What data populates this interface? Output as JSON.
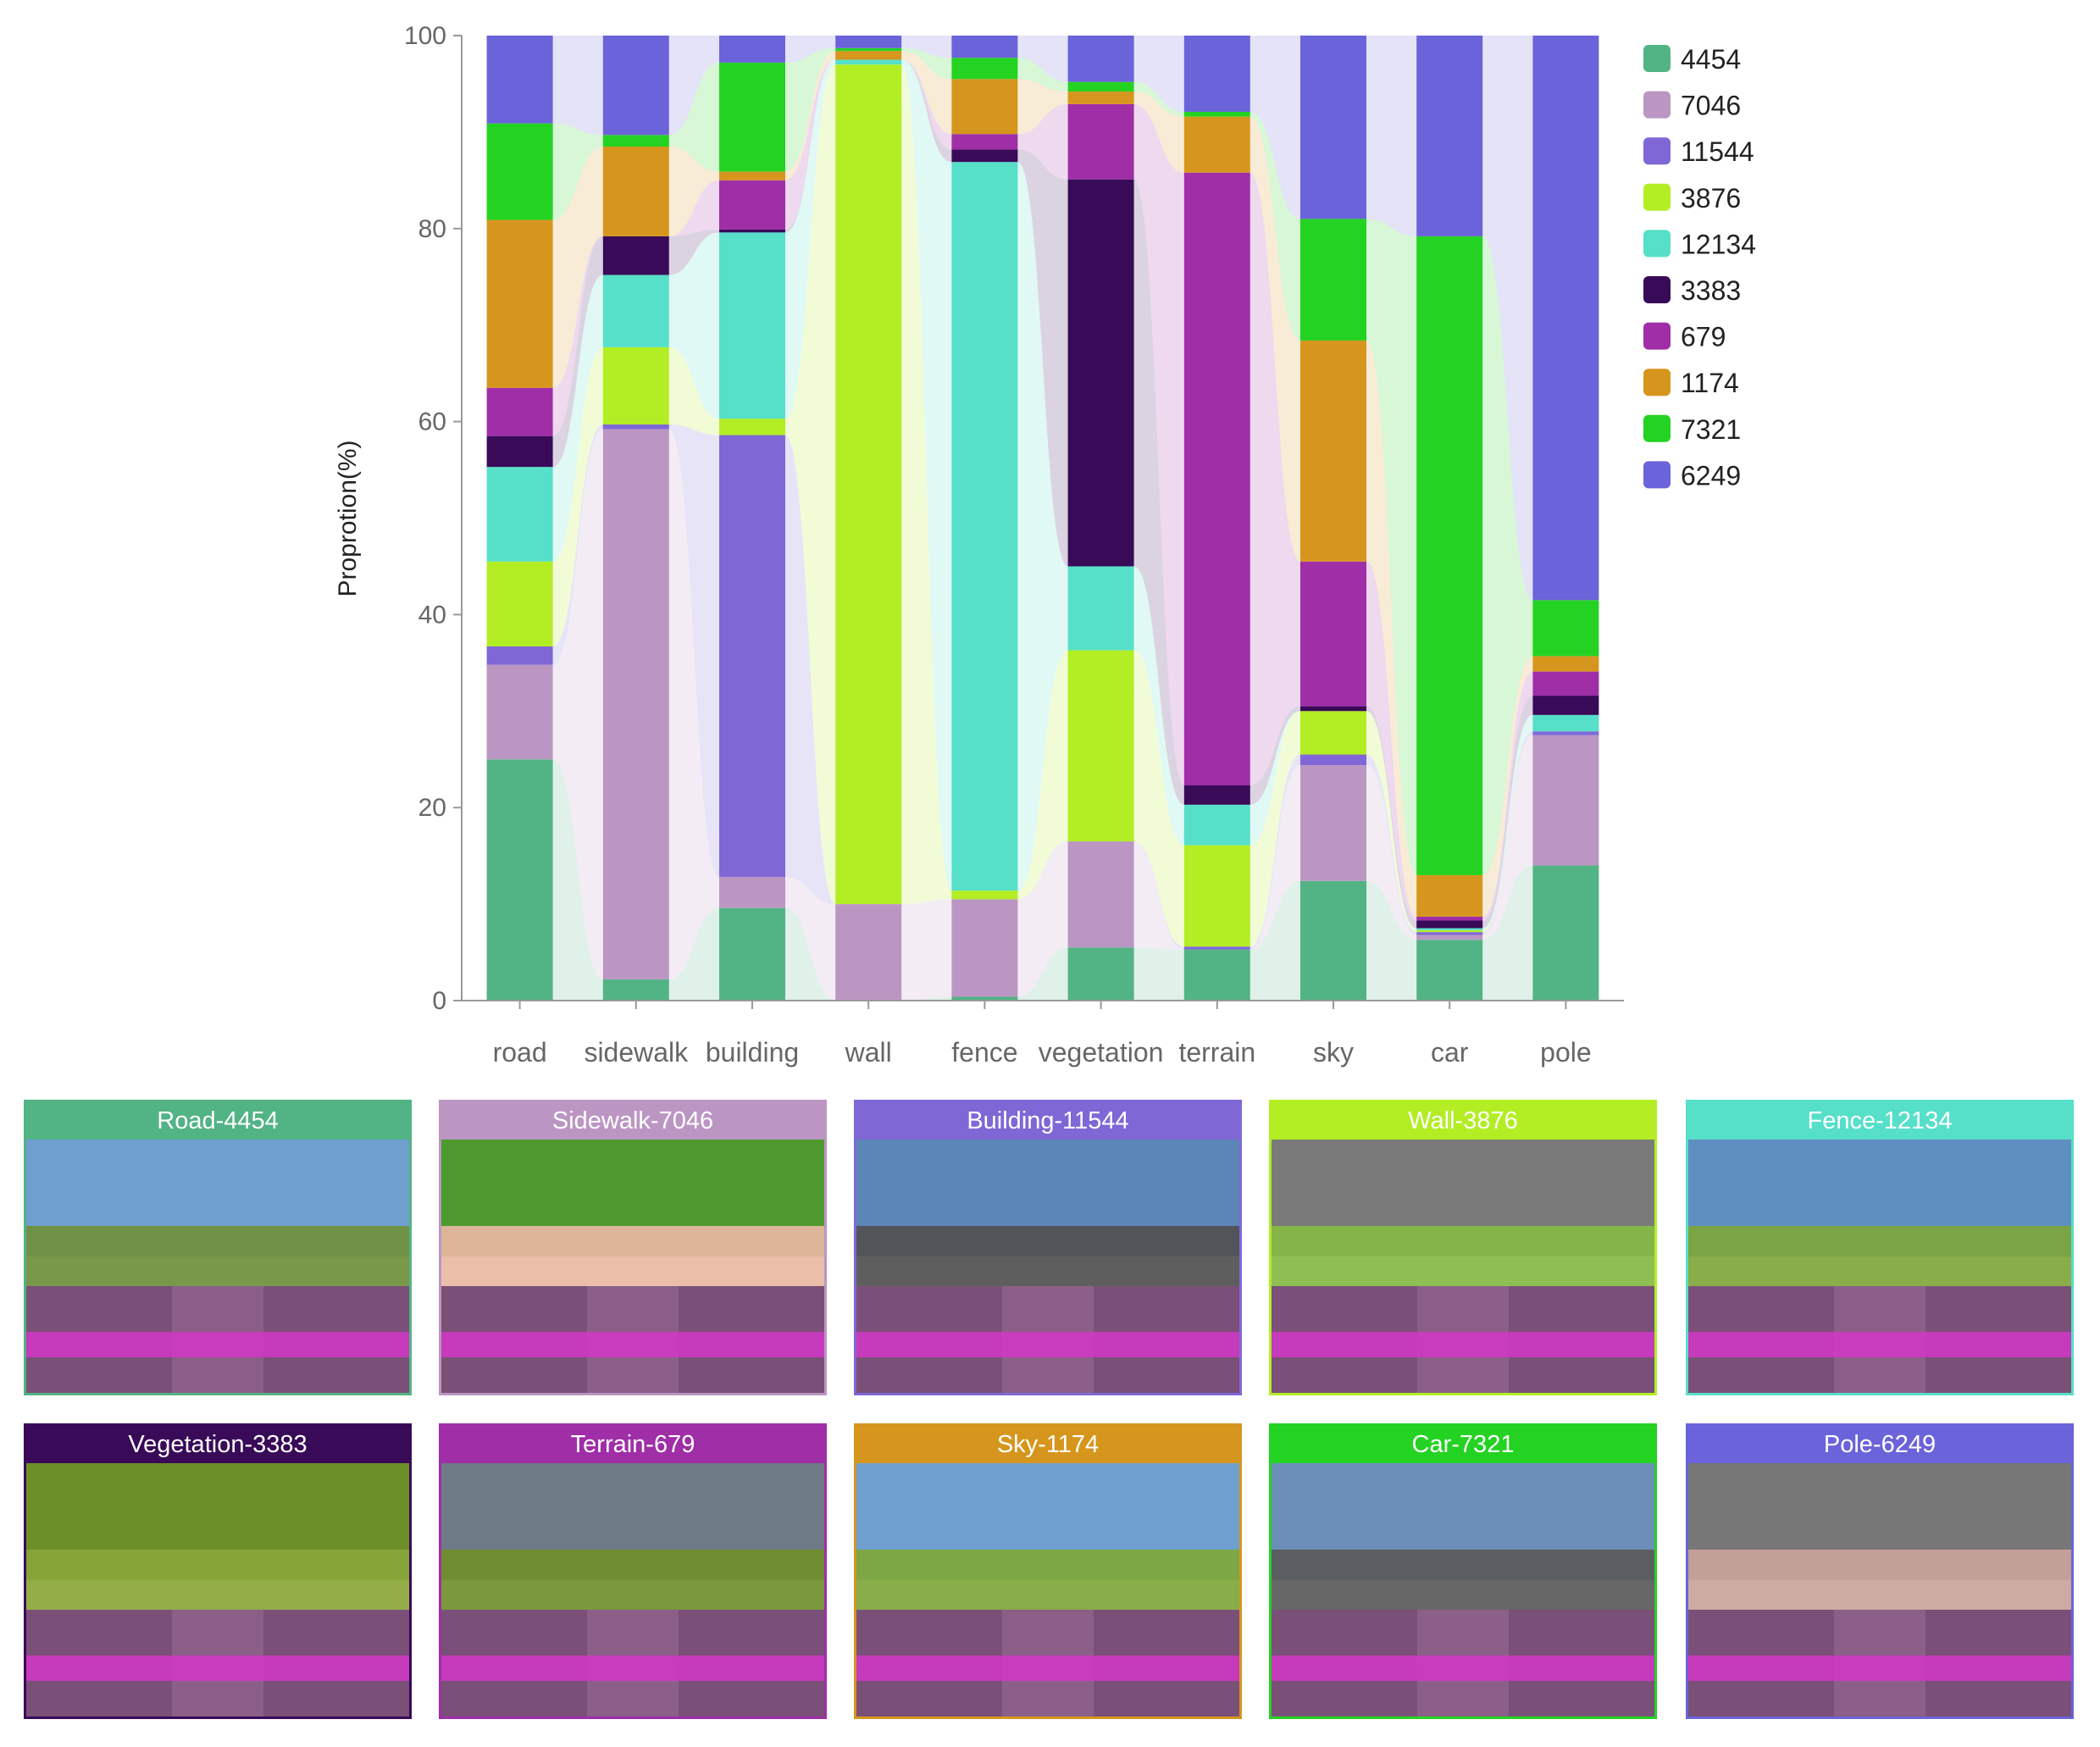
{
  "chart_data": {
    "type": "bar",
    "stacked": true,
    "categories": [
      "road",
      "sidewalk",
      "building",
      "wall",
      "fence",
      "vegetation",
      "terrain",
      "sky",
      "car",
      "pole"
    ],
    "ylabel": "Proprotion(%)",
    "ylim": [
      0,
      100
    ],
    "yticks": [
      0,
      20,
      40,
      60,
      80,
      100
    ],
    "legend_position": "top-right",
    "series": [
      {
        "name": "4454",
        "color": "#52b384",
        "values": [
          25.0,
          2.2,
          9.6,
          0.0,
          0.4,
          5.5,
          5.3,
          12.4,
          6.3,
          14.0
        ]
      },
      {
        "name": "7046",
        "color": "#bb96c3",
        "values": [
          9.8,
          57.0,
          3.2,
          10.0,
          10.1,
          11.0,
          0.0,
          12.0,
          0.5,
          13.5
        ]
      },
      {
        "name": "11544",
        "color": "#7f67d6",
        "values": [
          1.9,
          0.5,
          45.8,
          0.0,
          0.0,
          0.0,
          0.3,
          1.1,
          0.3,
          0.4
        ]
      },
      {
        "name": "3876",
        "color": "#b2ee23",
        "values": [
          8.8,
          8.0,
          1.7,
          87.0,
          0.9,
          19.8,
          10.5,
          4.5,
          0.2,
          0.0
        ]
      },
      {
        "name": "12134",
        "color": "#56dfc9",
        "values": [
          9.8,
          7.5,
          19.3,
          0.5,
          75.5,
          8.7,
          4.2,
          0.0,
          0.2,
          1.7
        ]
      },
      {
        "name": "3383",
        "color": "#380a58",
        "values": [
          3.2,
          4.0,
          0.3,
          0.0,
          1.3,
          40.1,
          2.0,
          0.5,
          0.8,
          2.0
        ]
      },
      {
        "name": "679",
        "color": "#9f2ea7",
        "values": [
          5.0,
          0.0,
          5.1,
          0.0,
          1.6,
          7.8,
          63.5,
          15.0,
          0.4,
          2.5
        ]
      },
      {
        "name": "1174",
        "color": "#d6961d",
        "values": [
          17.4,
          9.3,
          0.9,
          0.9,
          5.7,
          1.3,
          5.8,
          22.9,
          4.3,
          1.6
        ]
      },
      {
        "name": "7321",
        "color": "#24d222",
        "values": [
          10.0,
          1.2,
          11.3,
          0.3,
          2.2,
          1.0,
          0.5,
          12.6,
          66.2,
          5.8
        ]
      },
      {
        "name": "6249",
        "color": "#6b63d9",
        "values": [
          9.1,
          10.3,
          2.8,
          1.3,
          2.3,
          4.8,
          7.9,
          19.0,
          20.8,
          58.5
        ]
      }
    ]
  },
  "thumbnails": [
    {
      "label": "Road-4454",
      "color": "#52b384"
    },
    {
      "label": "Sidewalk-7046",
      "color": "#bb96c3"
    },
    {
      "label": "Building-11544",
      "color": "#7f67d6"
    },
    {
      "label": "Wall-3876",
      "color": "#b2ee23"
    },
    {
      "label": "Fence-12134",
      "color": "#56dfc9"
    },
    {
      "label": "Vegetation-3383",
      "color": "#380a58"
    },
    {
      "label": "Terrain-679",
      "color": "#9f2ea7"
    },
    {
      "label": "Sky-1174",
      "color": "#d6961d"
    },
    {
      "label": "Car-7321",
      "color": "#24d222"
    },
    {
      "label": "Pole-6249",
      "color": "#6b63d9"
    }
  ]
}
